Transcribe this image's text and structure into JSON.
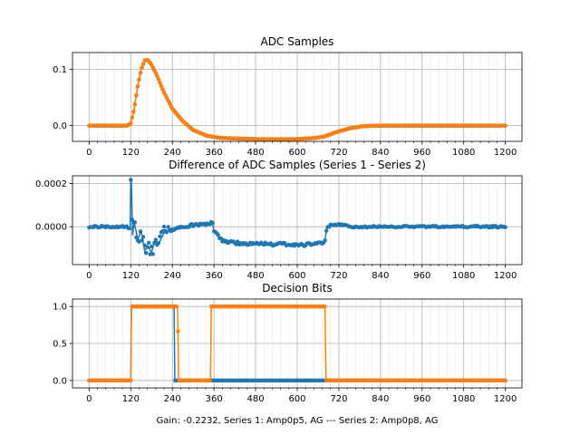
{
  "caption": "Gain: -0.2232, Series 1: Amp0p5, AG --- Series 2: Amp0p8, AG",
  "colors": {
    "series1": "#1f77b4",
    "series2": "#ff7f0e",
    "grid": "#b0b0b0",
    "axis": "#000000"
  },
  "chart_data": [
    {
      "type": "line",
      "title": "ADC Samples",
      "xlim": [
        -48,
        1248
      ],
      "ylim": [
        -0.028,
        0.13
      ],
      "xticks": [
        0,
        120,
        240,
        360,
        480,
        600,
        720,
        840,
        960,
        1080,
        1200
      ],
      "xtick_labels": [
        "0",
        "120",
        "240",
        "360",
        "480",
        "600",
        "720",
        "840",
        "960",
        "1080",
        "1200"
      ],
      "yticks": [
        0.0,
        0.1
      ],
      "ytick_labels": [
        "0.0",
        "0.1"
      ],
      "grid": true,
      "series": [
        {
          "name": "Series 1",
          "color": "#1f77b4",
          "marker": true,
          "points": [
            [
              0,
              0
            ],
            [
              110,
              0
            ],
            [
              120,
              0.004
            ],
            [
              130,
              0.03
            ],
            [
              140,
              0.07
            ],
            [
              150,
              0.1
            ],
            [
              160,
              0.116
            ],
            [
              170,
              0.117
            ],
            [
              180,
              0.108
            ],
            [
              195,
              0.09
            ],
            [
              215,
              0.06
            ],
            [
              240,
              0.03
            ],
            [
              270,
              0.008
            ],
            [
              300,
              -0.008
            ],
            [
              340,
              -0.018
            ],
            [
              380,
              -0.022
            ],
            [
              480,
              -0.024
            ],
            [
              600,
              -0.024
            ],
            [
              650,
              -0.022
            ],
            [
              680,
              -0.019
            ],
            [
              710,
              -0.012
            ],
            [
              750,
              -0.005
            ],
            [
              790,
              -0.001
            ],
            [
              830,
              0
            ],
            [
              1200,
              0
            ]
          ]
        },
        {
          "name": "Series 2",
          "color": "#ff7f0e",
          "marker": true,
          "points": [
            [
              0,
              0
            ],
            [
              110,
              0
            ],
            [
              120,
              0.004
            ],
            [
              130,
              0.03
            ],
            [
              140,
              0.07
            ],
            [
              150,
              0.1
            ],
            [
              160,
              0.116
            ],
            [
              170,
              0.117
            ],
            [
              180,
              0.108
            ],
            [
              195,
              0.09
            ],
            [
              215,
              0.06
            ],
            [
              240,
              0.03
            ],
            [
              270,
              0.008
            ],
            [
              300,
              -0.008
            ],
            [
              340,
              -0.018
            ],
            [
              380,
              -0.022
            ],
            [
              480,
              -0.024
            ],
            [
              600,
              -0.024
            ],
            [
              650,
              -0.022
            ],
            [
              680,
              -0.019
            ],
            [
              710,
              -0.012
            ],
            [
              750,
              -0.005
            ],
            [
              790,
              -0.001
            ],
            [
              830,
              0
            ],
            [
              1200,
              0
            ]
          ]
        }
      ]
    },
    {
      "type": "line",
      "title": "Difference of ADC Samples (Series 1 - Series 2)",
      "xlim": [
        -48,
        1248
      ],
      "ylim": [
        -0.000175,
        0.000235
      ],
      "xticks": [
        0,
        120,
        240,
        360,
        480,
        600,
        720,
        840,
        960,
        1080,
        1200
      ],
      "xtick_labels": [
        "0",
        "120",
        "240",
        "360",
        "480",
        "600",
        "720",
        "840",
        "960",
        "1080",
        "1200"
      ],
      "yticks": [
        0.0,
        0.0002
      ],
      "ytick_labels": [
        "0.0000",
        "0.0002"
      ],
      "grid": true,
      "series": [
        {
          "name": "Series 1 - Series 2",
          "color": "#1f77b4",
          "marker": true,
          "points": [
            [
              0,
              0
            ],
            [
              110,
              0
            ],
            [
              118,
              -1e-05
            ],
            [
              120,
              0.00022
            ],
            [
              122,
              0.0002
            ],
            [
              125,
              -4e-05
            ],
            [
              130,
              2e-05
            ],
            [
              140,
              -6e-05
            ],
            [
              150,
              -2e-05
            ],
            [
              160,
              -0.00011
            ],
            [
              170,
              -9e-05
            ],
            [
              180,
              -0.00012
            ],
            [
              190,
              -6e-05
            ],
            [
              200,
              -8e-05
            ],
            [
              215,
              -3e-05
            ],
            [
              230,
              -2e-05
            ],
            [
              250,
              -1e-05
            ],
            [
              280,
              0
            ],
            [
              310,
              1e-05
            ],
            [
              340,
              1e-05
            ],
            [
              355,
              2e-05
            ],
            [
              360,
              -2e-05
            ],
            [
              370,
              -4e-05
            ],
            [
              380,
              -6e-05
            ],
            [
              400,
              -7e-05
            ],
            [
              450,
              -8e-05
            ],
            [
              500,
              -8e-05
            ],
            [
              550,
              -8e-05
            ],
            [
              600,
              -8.5e-05
            ],
            [
              650,
              -8e-05
            ],
            [
              680,
              -7e-05
            ],
            [
              685,
              0
            ],
            [
              720,
              1e-05
            ],
            [
              760,
              0
            ],
            [
              840,
              0
            ],
            [
              1200,
              0
            ]
          ]
        }
      ]
    },
    {
      "type": "line",
      "title": "Decision Bits",
      "xlim": [
        -48,
        1248
      ],
      "ylim": [
        -0.1,
        1.1
      ],
      "xticks": [
        0,
        120,
        240,
        360,
        480,
        600,
        720,
        840,
        960,
        1080,
        1200
      ],
      "xtick_labels": [
        "0",
        "120",
        "240",
        "360",
        "480",
        "600",
        "720",
        "840",
        "960",
        "1080",
        "1200"
      ],
      "yticks": [
        0.0,
        0.5,
        1.0
      ],
      "ytick_labels": [
        "0.0",
        "0.5",
        "1.0"
      ],
      "grid": true,
      "series": [
        {
          "name": "Series 1",
          "color": "#1f77b4",
          "marker": true,
          "points": [
            [
              0,
              0
            ],
            [
              120,
              0
            ],
            [
              122,
              1
            ],
            [
              245,
              1
            ],
            [
              247,
              0
            ],
            [
              1200,
              0
            ]
          ]
        },
        {
          "name": "Series 2",
          "color": "#ff7f0e",
          "marker": true,
          "points": [
            [
              0,
              0
            ],
            [
              120,
              0
            ],
            [
              122,
              1
            ],
            [
              255,
              1
            ],
            [
              258,
              0
            ],
            [
              350,
              0
            ],
            [
              352,
              1
            ],
            [
              680,
              1
            ],
            [
              683,
              0
            ],
            [
              1200,
              0
            ]
          ]
        }
      ]
    }
  ]
}
